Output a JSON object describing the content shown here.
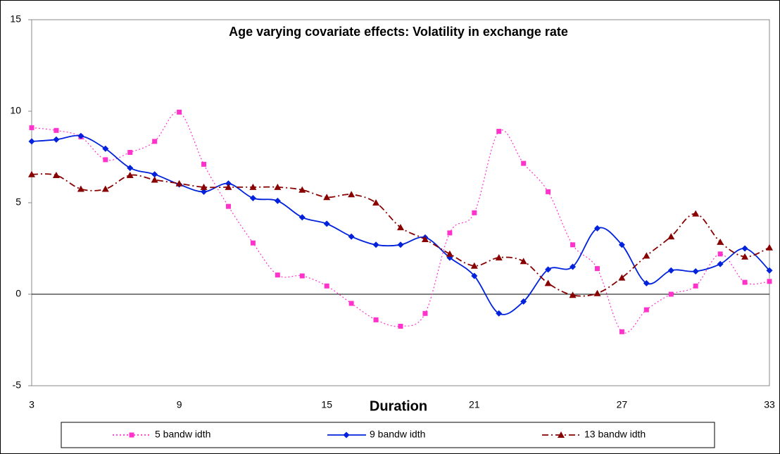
{
  "chart_data": {
    "type": "line",
    "title": "Age varying covariate effects: Volatility in exchange rate",
    "x_label": "Duration",
    "x": [
      3,
      4,
      5,
      6,
      7,
      8,
      9,
      10,
      11,
      12,
      13,
      14,
      15,
      16,
      17,
      18,
      19,
      20,
      21,
      22,
      23,
      24,
      25,
      26,
      27,
      28,
      29,
      30,
      31,
      32,
      33
    ],
    "xlim": [
      3,
      33
    ],
    "xticks": [
      3,
      9,
      15,
      21,
      27,
      33
    ],
    "ylim": [
      -5,
      15
    ],
    "yticks": [
      -5,
      0,
      5,
      10,
      15
    ],
    "series": [
      {
        "name": "5 bandw idth",
        "color": "#ff33cc",
        "marker": "square",
        "dash": "dotted",
        "values": [
          9.1,
          8.95,
          8.6,
          7.35,
          7.75,
          8.35,
          9.95,
          7.1,
          4.8,
          2.8,
          1.05,
          1.0,
          0.45,
          -0.5,
          -1.4,
          -1.75,
          -1.05,
          3.35,
          4.45,
          8.9,
          7.15,
          5.6,
          2.7,
          1.4,
          -2.05,
          -0.85,
          0.0,
          0.45,
          2.2,
          0.65,
          0.7
        ]
      },
      {
        "name": "9 bandw idth",
        "color": "#0022dd",
        "marker": "diamond",
        "dash": "solid",
        "values": [
          8.35,
          8.45,
          8.65,
          7.95,
          6.9,
          6.55,
          6.0,
          5.6,
          6.05,
          5.25,
          5.1,
          4.2,
          3.85,
          3.15,
          2.7,
          2.7,
          3.1,
          2.0,
          1.0,
          -1.05,
          -0.4,
          1.35,
          1.5,
          3.6,
          2.7,
          0.6,
          1.3,
          1.25,
          1.65,
          2.5,
          1.3
        ]
      },
      {
        "name": "13 bandw idth",
        "color": "#880000",
        "marker": "triangle",
        "dash": "dashdot",
        "values": [
          6.55,
          6.5,
          5.75,
          5.75,
          6.5,
          6.25,
          6.05,
          5.85,
          5.85,
          5.85,
          5.85,
          5.7,
          5.3,
          5.45,
          5.0,
          3.65,
          3.0,
          2.2,
          1.55,
          2.0,
          1.8,
          0.6,
          -0.05,
          0.05,
          0.9,
          2.1,
          3.15,
          4.4,
          2.85,
          2.05,
          2.55
        ]
      }
    ]
  }
}
